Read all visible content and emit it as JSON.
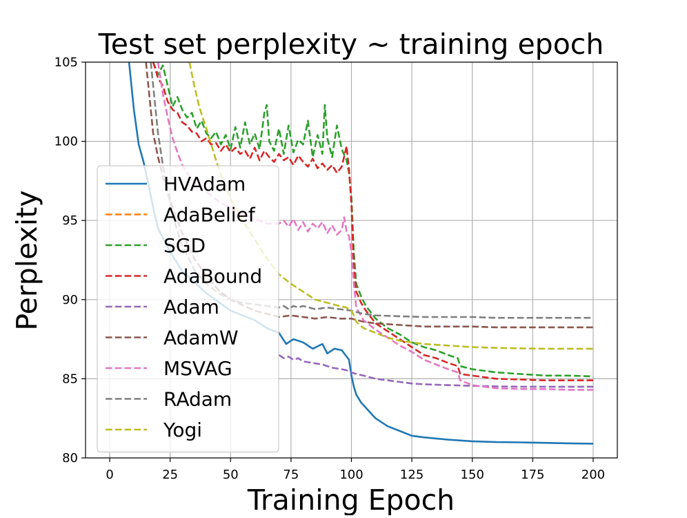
{
  "chart_data": {
    "type": "line",
    "title": "Test set perplexity ~ training epoch",
    "xlabel": "Training Epoch",
    "ylabel": "Perplexity",
    "xlim": [
      -10,
      210
    ],
    "ylim": [
      80,
      105
    ],
    "xticks": [
      0,
      25,
      50,
      75,
      100,
      125,
      150,
      175,
      200
    ],
    "yticks": [
      80,
      85,
      90,
      95,
      100,
      105
    ],
    "grid": true,
    "legend_position": "center-left",
    "series": [
      {
        "name": "HVAdam",
        "color": "#1f77b4",
        "dash": "solid",
        "x": [
          8,
          10,
          12,
          14,
          16,
          18,
          20,
          25,
          30,
          40,
          50,
          60,
          65,
          70,
          73,
          76,
          80,
          84,
          88,
          90,
          93,
          96,
          99,
          100,
          101,
          102,
          104,
          107,
          110,
          115,
          120,
          125,
          130,
          140,
          150,
          160,
          170,
          180,
          190,
          200
        ],
        "y": [
          105,
          102,
          99.8,
          98.7,
          97.3,
          95.8,
          94.5,
          93,
          91.8,
          90.4,
          89.3,
          88.7,
          88.2,
          87.9,
          87.2,
          87.5,
          87.3,
          86.9,
          87.2,
          86.6,
          86.9,
          86.8,
          86.2,
          85.2,
          84.5,
          84.0,
          83.5,
          83.0,
          82.5,
          82.0,
          81.7,
          81.4,
          81.3,
          81.15,
          81.05,
          81.0,
          80.98,
          80.95,
          80.92,
          80.9
        ]
      },
      {
        "name": "AdaBelief",
        "color": "#ff7f0e",
        "dash": "dashed",
        "x": [],
        "y": []
      },
      {
        "name": "SGD",
        "color": "#2ca02c",
        "dash": "dashed",
        "x": [
          18,
          20,
          22,
          24,
          26,
          28,
          30,
          32,
          34,
          36,
          38,
          40,
          42,
          44,
          46,
          48,
          50,
          52,
          54,
          56,
          58,
          60,
          62,
          64,
          65,
          66,
          68,
          70,
          72,
          74,
          76,
          78,
          80,
          82,
          84,
          86,
          88,
          89,
          90,
          92,
          94,
          96,
          98,
          99,
          100,
          101,
          102,
          104,
          106,
          110,
          115,
          120,
          125,
          130,
          135,
          140,
          144,
          145,
          150,
          160,
          170,
          180,
          190,
          200
        ],
        "y": [
          105,
          104.2,
          104.8,
          103.5,
          102.2,
          102.8,
          102.0,
          101.5,
          101.8,
          100.8,
          101.3,
          100.5,
          100.2,
          100.6,
          99.8,
          100.4,
          99.5,
          100.9,
          99.6,
          101.2,
          99.8,
          100.5,
          99.5,
          101.8,
          102.3,
          100.0,
          99.4,
          100.8,
          99.2,
          101.0,
          99.3,
          100.1,
          99.8,
          101.3,
          99.0,
          100.4,
          99.2,
          102.3,
          100.2,
          99.0,
          101.0,
          99.5,
          98.8,
          98.0,
          96.5,
          93.0,
          91.0,
          90.2,
          89.6,
          88.8,
          88.2,
          87.8,
          87.3,
          87.0,
          86.8,
          86.5,
          86.3,
          85.8,
          85.6,
          85.4,
          85.3,
          85.2,
          85.2,
          85.15
        ]
      },
      {
        "name": "AdaBound",
        "color": "#d62728",
        "dash": "dashed",
        "x": [
          18,
          20,
          22,
          24,
          26,
          28,
          30,
          32,
          34,
          36,
          38,
          40,
          42,
          44,
          46,
          48,
          50,
          52,
          54,
          56,
          58,
          60,
          62,
          64,
          66,
          68,
          70,
          72,
          74,
          76,
          78,
          80,
          82,
          84,
          86,
          88,
          90,
          92,
          94,
          96,
          98,
          99,
          100,
          101,
          102,
          104,
          106,
          110,
          115,
          120,
          125,
          130,
          135,
          140,
          144,
          145,
          150,
          160,
          170,
          180,
          190,
          200
        ],
        "y": [
          105,
          104.0,
          103.5,
          102.5,
          102.0,
          101.8,
          101.2,
          101.0,
          100.6,
          100.5,
          100.0,
          100.2,
          99.8,
          99.9,
          99.4,
          99.8,
          99.3,
          99.6,
          99.2,
          99.4,
          98.9,
          99.6,
          98.8,
          99.4,
          99.0,
          98.7,
          99.2,
          98.8,
          99.0,
          98.5,
          99.1,
          98.7,
          98.4,
          98.9,
          98.3,
          98.6,
          98.2,
          98.5,
          98.0,
          98.4,
          99.7,
          98.2,
          96.0,
          92.0,
          90.5,
          89.8,
          89.3,
          88.5,
          88.0,
          87.5,
          87.0,
          86.5,
          86.3,
          86.0,
          85.8,
          85.3,
          85.2,
          85.0,
          84.95,
          84.9,
          84.9,
          84.9
        ]
      },
      {
        "name": "Adam",
        "color": "#9467bd",
        "dash": "dashed",
        "x": [
          70,
          72,
          74,
          76,
          78,
          80,
          84,
          88,
          92,
          96,
          99,
          100,
          101,
          102,
          105,
          110,
          115,
          120,
          125,
          130,
          140,
          150,
          160,
          170,
          180,
          190,
          200
        ],
        "y": [
          86.5,
          86.3,
          86.4,
          86.2,
          86.3,
          86.1,
          86.0,
          85.9,
          85.7,
          85.6,
          85.5,
          85.4,
          85.35,
          85.3,
          85.2,
          85.0,
          84.9,
          84.8,
          84.7,
          84.65,
          84.6,
          84.55,
          84.52,
          84.5,
          84.5,
          84.5,
          84.5
        ]
      },
      {
        "name": "AdamW",
        "color": "#8c564b",
        "dash": "dashed",
        "x": [
          15,
          16,
          17,
          18,
          20,
          22,
          24,
          26,
          28,
          30,
          35,
          40,
          45,
          50,
          60,
          70,
          75,
          80,
          85,
          90,
          95,
          100,
          105,
          110,
          120,
          130,
          140,
          150,
          160,
          170,
          180,
          190,
          200
        ],
        "y": [
          105,
          103.5,
          102.0,
          100.5,
          99.0,
          97.8,
          96.8,
          95.8,
          95.0,
          94.2,
          92.6,
          91.5,
          90.6,
          90.0,
          89.3,
          88.9,
          89.0,
          88.9,
          88.8,
          88.9,
          88.8,
          88.8,
          88.6,
          88.5,
          88.4,
          88.3,
          88.3,
          88.3,
          88.25,
          88.25,
          88.25,
          88.25,
          88.25
        ]
      },
      {
        "name": "MSVAG",
        "color": "#e377c2",
        "dash": "dashed",
        "x": [
          20,
          22,
          24,
          26,
          28,
          30,
          32,
          35,
          40,
          45,
          50,
          55,
          60,
          65,
          70,
          72,
          74,
          76,
          78,
          80,
          82,
          84,
          86,
          88,
          90,
          92,
          94,
          96,
          97,
          98,
          99,
          100,
          101,
          102,
          105,
          110,
          115,
          120,
          125,
          130,
          140,
          144,
          145,
          150,
          160,
          170,
          180,
          190,
          200
        ],
        "y": [
          105,
          103.0,
          101.5,
          100.2,
          99.3,
          98.5,
          98.0,
          97.4,
          96.8,
          96.2,
          95.8,
          95.4,
          95.1,
          94.8,
          94.8,
          95.0,
          94.6,
          95.1,
          94.4,
          94.9,
          94.3,
          94.8,
          94.5,
          94.9,
          94.2,
          94.7,
          94.1,
          94.4,
          95.2,
          94.3,
          94.0,
          93.0,
          91.0,
          89.5,
          88.7,
          88.1,
          87.6,
          87.1,
          86.7,
          86.2,
          85.6,
          85.4,
          84.9,
          84.6,
          84.4,
          84.35,
          84.35,
          84.3,
          84.3
        ]
      },
      {
        "name": "RAdam",
        "color": "#7f7f7f",
        "dash": "dashed",
        "x": [
          17,
          18,
          19,
          20,
          22,
          24,
          26,
          28,
          30,
          35,
          40,
          45,
          50,
          55,
          60,
          65,
          70,
          72,
          74,
          76,
          78,
          80,
          85,
          90,
          95,
          100,
          105,
          110,
          120,
          130,
          140,
          150,
          160,
          170,
          180,
          190,
          200
        ],
        "y": [
          105,
          103.5,
          102.0,
          100.5,
          98.5,
          96.8,
          95.4,
          94.3,
          93.4,
          91.9,
          91.0,
          90.4,
          90.0,
          89.8,
          89.7,
          89.6,
          89.5,
          89.6,
          89.4,
          89.6,
          89.5,
          89.6,
          89.4,
          89.5,
          89.4,
          89.3,
          89.1,
          89.0,
          88.95,
          88.9,
          88.9,
          88.9,
          88.85,
          88.85,
          88.85,
          88.85,
          88.85
        ]
      },
      {
        "name": "Yogi",
        "color": "#bcbd22",
        "dash": "dashed",
        "x": [
          33,
          35,
          37,
          40,
          42,
          44,
          46,
          50,
          55,
          60,
          65,
          70,
          75,
          80,
          85,
          90,
          95,
          98,
          100,
          101,
          102,
          105,
          110,
          115,
          120,
          130,
          140,
          150,
          160,
          170,
          180,
          190,
          200
        ],
        "y": [
          105,
          103.5,
          102.2,
          100.8,
          99.8,
          98.8,
          97.9,
          96.4,
          95.0,
          93.8,
          92.6,
          91.6,
          91.0,
          90.5,
          90.0,
          89.8,
          89.6,
          89.5,
          89.3,
          89.0,
          88.6,
          88.2,
          87.9,
          87.6,
          87.4,
          87.2,
          87.1,
          87.0,
          86.95,
          86.92,
          86.9,
          86.9,
          86.9
        ]
      }
    ]
  }
}
